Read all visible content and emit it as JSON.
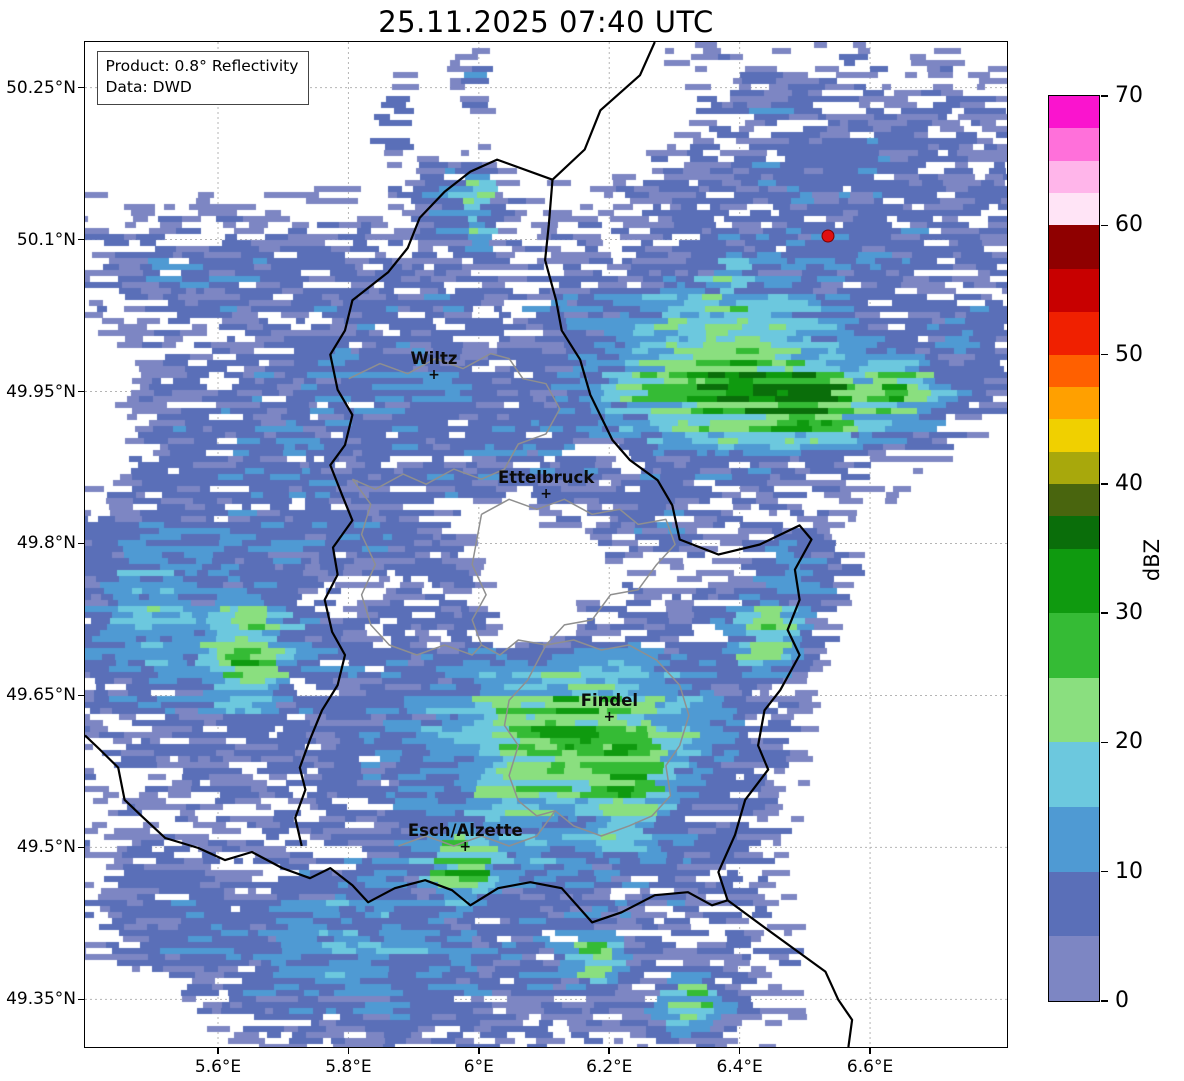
{
  "title": "25.11.2025 07:40 UTC",
  "info_box": {
    "line1": "Product: 0.8° Reflectivity",
    "line2": "Data: DWD"
  },
  "colorbar": {
    "label": "dBZ",
    "ticks": [
      0,
      10,
      20,
      30,
      40,
      50,
      60,
      70
    ],
    "max": 70,
    "stops": [
      {
        "v": [
          0,
          5
        ],
        "c": "#7d86c3"
      },
      {
        "v": [
          5,
          10
        ],
        "c": "#5a6fb8"
      },
      {
        "v": [
          10,
          15
        ],
        "c": "#4f9ad3"
      },
      {
        "v": [
          15,
          20
        ],
        "c": "#6cc8de"
      },
      {
        "v": [
          20,
          25
        ],
        "c": "#8adf7f"
      },
      {
        "v": [
          25,
          30
        ],
        "c": "#35bb35"
      },
      {
        "v": [
          30,
          35
        ],
        "c": "#0f9a0f"
      },
      {
        "v": [
          35,
          37.5
        ],
        "c": "#0a6e0a"
      },
      {
        "v": [
          37.5,
          40
        ],
        "c": "#49650e"
      },
      {
        "v": [
          40,
          42.5
        ],
        "c": "#a8a80c"
      },
      {
        "v": [
          42.5,
          45
        ],
        "c": "#f0d000"
      },
      {
        "v": [
          45,
          47.5
        ],
        "c": "#ffa000"
      },
      {
        "v": [
          47.5,
          50
        ],
        "c": "#ff6000"
      },
      {
        "v": [
          50,
          53.3
        ],
        "c": "#f02000"
      },
      {
        "v": [
          53.3,
          56.6
        ],
        "c": "#c80000"
      },
      {
        "v": [
          56.6,
          60
        ],
        "c": "#8f0000"
      },
      {
        "v": [
          60,
          62.5
        ],
        "c": "#ffe4f6"
      },
      {
        "v": [
          62.5,
          65
        ],
        "c": "#ffb5ea"
      },
      {
        "v": [
          65,
          67.5
        ],
        "c": "#ff70da"
      },
      {
        "v": [
          67.5,
          70
        ],
        "c": "#fa14ce"
      }
    ]
  },
  "axes": {
    "lon_min": 5.396,
    "lon_max": 6.81,
    "lat_min": 49.303,
    "lat_max": 50.295,
    "lon_ticks": [
      {
        "v": 5.6,
        "label": "5.6°E"
      },
      {
        "v": 5.8,
        "label": "5.8°E"
      },
      {
        "v": 6.0,
        "label": "6°E"
      },
      {
        "v": 6.2,
        "label": "6.2°E"
      },
      {
        "v": 6.4,
        "label": "6.4°E"
      },
      {
        "v": 6.6,
        "label": "6.6°E"
      }
    ],
    "lat_ticks": [
      {
        "v": 50.25,
        "label": "50.25°N"
      },
      {
        "v": 50.1,
        "label": "50.1°N"
      },
      {
        "v": 49.95,
        "label": "49.95°N"
      },
      {
        "v": 49.8,
        "label": "49.8°N"
      },
      {
        "v": 49.65,
        "label": "49.65°N"
      },
      {
        "v": 49.5,
        "label": "49.5°N"
      },
      {
        "v": 49.35,
        "label": "49.35°N"
      }
    ]
  },
  "cities": [
    {
      "name": "Wiltz",
      "lon": 5.932,
      "lat": 49.966
    },
    {
      "name": "Ettelbruck",
      "lon": 6.104,
      "lat": 49.848
    },
    {
      "name": "Findel",
      "lon": 6.201,
      "lat": 49.628
    },
    {
      "name": "Esch/Alzette",
      "lon": 5.98,
      "lat": 49.5
    }
  ],
  "station_marker": {
    "lon": 6.536,
    "lat": 50.103,
    "color": "#e01010"
  },
  "radar": {
    "blobs": [
      [
        0.16,
        0.235,
        0.17,
        0.05,
        8
      ],
      [
        0.31,
        0.275,
        0.13,
        0.045,
        7
      ],
      [
        0.33,
        0.068,
        0.032,
        0.05,
        8
      ],
      [
        0.42,
        0.04,
        0.018,
        0.035,
        8
      ],
      [
        0.4,
        0.165,
        0.05,
        0.05,
        10
      ],
      [
        0.425,
        0.167,
        0.02,
        0.04,
        24
      ],
      [
        0.33,
        0.33,
        0.21,
        0.13,
        9
      ],
      [
        0.46,
        0.43,
        0.18,
        0.11,
        8
      ],
      [
        0.55,
        0.3,
        0.1,
        0.09,
        10
      ],
      [
        0.62,
        0.46,
        0.07,
        0.05,
        9
      ],
      [
        0.78,
        0.2,
        0.24,
        0.15,
        8
      ],
      [
        0.95,
        0.3,
        0.08,
        0.06,
        10
      ],
      [
        0.7,
        0.325,
        0.15,
        0.085,
        30
      ],
      [
        0.775,
        0.355,
        0.09,
        0.05,
        35
      ],
      [
        0.87,
        0.345,
        0.07,
        0.045,
        24
      ],
      [
        0.7,
        0.235,
        0.022,
        0.027,
        22
      ],
      [
        0.08,
        0.56,
        0.11,
        0.12,
        14
      ],
      [
        0.174,
        0.605,
        0.062,
        0.068,
        24
      ],
      [
        0.22,
        0.5,
        0.3,
        0.28,
        8
      ],
      [
        0.77,
        0.53,
        0.05,
        0.05,
        12
      ],
      [
        0.5,
        0.73,
        0.24,
        0.15,
        14
      ],
      [
        0.53,
        0.695,
        0.16,
        0.1,
        26
      ],
      [
        0.585,
        0.73,
        0.06,
        0.08,
        32
      ],
      [
        0.47,
        0.745,
        0.07,
        0.05,
        25
      ],
      [
        0.41,
        0.82,
        0.05,
        0.045,
        26
      ],
      [
        0.74,
        0.59,
        0.05,
        0.042,
        24
      ],
      [
        0.45,
        0.88,
        0.36,
        0.12,
        8
      ],
      [
        0.12,
        0.88,
        0.1,
        0.08,
        9
      ],
      [
        0.3,
        0.9,
        0.18,
        0.09,
        13
      ],
      [
        0.555,
        0.91,
        0.035,
        0.035,
        24
      ],
      [
        0.655,
        0.955,
        0.04,
        0.032,
        23
      ],
      [
        0.74,
        0.06,
        0.06,
        0.045,
        7
      ],
      [
        0.845,
        0.11,
        0.05,
        0.04,
        8
      ]
    ],
    "holes": [
      [
        0.49,
        0.52,
        0.06,
        0.04,
        10
      ],
      [
        0.45,
        0.475,
        0.05,
        0.03,
        8
      ],
      [
        0.295,
        0.555,
        0.035,
        0.03,
        7
      ],
      [
        0.5,
        0.59,
        0.05,
        0.035,
        8
      ],
      [
        0.15,
        0.05,
        0.18,
        0.065,
        11
      ],
      [
        0.57,
        0.08,
        0.07,
        0.05,
        8
      ],
      [
        0.93,
        0.82,
        0.13,
        0.17,
        13
      ],
      [
        0.92,
        0.62,
        0.08,
        0.07,
        8
      ],
      [
        0.99,
        0.5,
        0.05,
        0.06,
        6
      ],
      [
        0.015,
        0.38,
        0.05,
        0.1,
        6
      ],
      [
        0.05,
        0.97,
        0.07,
        0.05,
        8
      ]
    ]
  },
  "map_layers": {
    "black": [
      [
        [
          0.618,
          0.0
        ],
        [
          0.602,
          0.033
        ],
        [
          0.559,
          0.068
        ],
        [
          0.542,
          0.107
        ],
        [
          0.507,
          0.137
        ],
        [
          0.503,
          0.182
        ],
        [
          0.499,
          0.217
        ],
        [
          0.511,
          0.257
        ],
        [
          0.517,
          0.287
        ],
        [
          0.537,
          0.316
        ],
        [
          0.548,
          0.351
        ],
        [
          0.572,
          0.396
        ],
        [
          0.591,
          0.416
        ],
        [
          0.621,
          0.436
        ],
        [
          0.637,
          0.461
        ],
        [
          0.645,
          0.495
        ],
        [
          0.687,
          0.51
        ],
        [
          0.732,
          0.5
        ],
        [
          0.775,
          0.481
        ],
        [
          0.788,
          0.495
        ],
        [
          0.77,
          0.525
        ],
        [
          0.775,
          0.555
        ],
        [
          0.762,
          0.585
        ],
        [
          0.775,
          0.61
        ],
        [
          0.754,
          0.645
        ],
        [
          0.737,
          0.665
        ],
        [
          0.73,
          0.7
        ],
        [
          0.741,
          0.724
        ],
        [
          0.716,
          0.754
        ],
        [
          0.705,
          0.789
        ],
        [
          0.687,
          0.826
        ],
        [
          0.697,
          0.854
        ],
        [
          0.734,
          0.879
        ],
        [
          0.77,
          0.903
        ],
        [
          0.803,
          0.925
        ],
        [
          0.817,
          0.953
        ],
        [
          0.832,
          0.973
        ],
        [
          0.828,
          1.0
        ]
      ],
      [
        [
          0.507,
          0.137
        ],
        [
          0.447,
          0.117
        ],
        [
          0.418,
          0.129
        ],
        [
          0.39,
          0.149
        ],
        [
          0.363,
          0.175
        ],
        [
          0.35,
          0.205
        ],
        [
          0.329,
          0.229
        ],
        [
          0.29,
          0.257
        ],
        [
          0.282,
          0.287
        ],
        [
          0.266,
          0.311
        ],
        [
          0.274,
          0.346
        ],
        [
          0.29,
          0.371
        ],
        [
          0.282,
          0.401
        ],
        [
          0.266,
          0.421
        ],
        [
          0.279,
          0.451
        ],
        [
          0.29,
          0.476
        ],
        [
          0.269,
          0.503
        ],
        [
          0.274,
          0.53
        ],
        [
          0.26,
          0.555
        ],
        [
          0.268,
          0.587
        ],
        [
          0.282,
          0.61
        ],
        [
          0.274,
          0.64
        ],
        [
          0.257,
          0.665
        ],
        [
          0.244,
          0.694
        ],
        [
          0.233,
          0.722
        ],
        [
          0.239,
          0.744
        ],
        [
          0.228,
          0.772
        ],
        [
          0.235,
          0.8
        ]
      ],
      [
        [
          0.0,
          0.69
        ],
        [
          0.016,
          0.704
        ],
        [
          0.036,
          0.722
        ],
        [
          0.043,
          0.754
        ],
        [
          0.06,
          0.769
        ],
        [
          0.087,
          0.792
        ],
        [
          0.123,
          0.802
        ],
        [
          0.152,
          0.814
        ],
        [
          0.181,
          0.806
        ],
        [
          0.214,
          0.822
        ],
        [
          0.244,
          0.832
        ],
        [
          0.266,
          0.822
        ],
        [
          0.29,
          0.839
        ],
        [
          0.307,
          0.856
        ],
        [
          0.336,
          0.842
        ],
        [
          0.369,
          0.834
        ],
        [
          0.398,
          0.844
        ],
        [
          0.418,
          0.859
        ],
        [
          0.448,
          0.842
        ],
        [
          0.483,
          0.836
        ],
        [
          0.517,
          0.842
        ],
        [
          0.55,
          0.876
        ],
        [
          0.582,
          0.866
        ],
        [
          0.618,
          0.849
        ],
        [
          0.654,
          0.846
        ],
        [
          0.68,
          0.859
        ],
        [
          0.697,
          0.854
        ]
      ]
    ],
    "gray": [
      [
        [
          0.286,
          0.335
        ],
        [
          0.32,
          0.32
        ],
        [
          0.35,
          0.33
        ],
        [
          0.38,
          0.315
        ],
        [
          0.41,
          0.325
        ],
        [
          0.44,
          0.31
        ],
        [
          0.46,
          0.315
        ],
        [
          0.475,
          0.335
        ],
        [
          0.5,
          0.34
        ],
        [
          0.515,
          0.365
        ],
        [
          0.5,
          0.39
        ],
        [
          0.47,
          0.4
        ],
        [
          0.455,
          0.425
        ],
        [
          0.43,
          0.435
        ],
        [
          0.4,
          0.425
        ],
        [
          0.37,
          0.44
        ],
        [
          0.345,
          0.43
        ],
        [
          0.315,
          0.445
        ],
        [
          0.29,
          0.435
        ]
      ],
      [
        [
          0.43,
          0.47
        ],
        [
          0.46,
          0.455
        ],
        [
          0.49,
          0.465
        ],
        [
          0.52,
          0.455
        ],
        [
          0.55,
          0.47
        ],
        [
          0.58,
          0.465
        ],
        [
          0.6,
          0.48
        ],
        [
          0.63,
          0.475
        ],
        [
          0.64,
          0.5
        ],
        [
          0.62,
          0.52
        ],
        [
          0.6,
          0.545
        ],
        [
          0.57,
          0.55
        ],
        [
          0.55,
          0.575
        ],
        [
          0.52,
          0.58
        ],
        [
          0.5,
          0.6
        ],
        [
          0.47,
          0.595
        ],
        [
          0.45,
          0.61
        ],
        [
          0.43,
          0.6
        ],
        [
          0.42,
          0.575
        ],
        [
          0.435,
          0.55
        ],
        [
          0.42,
          0.52
        ],
        [
          0.43,
          0.47
        ]
      ],
      [
        [
          0.5,
          0.6
        ],
        [
          0.53,
          0.595
        ],
        [
          0.56,
          0.605
        ],
        [
          0.59,
          0.6
        ],
        [
          0.62,
          0.615
        ],
        [
          0.645,
          0.64
        ],
        [
          0.655,
          0.67
        ],
        [
          0.645,
          0.7
        ],
        [
          0.63,
          0.72
        ],
        [
          0.635,
          0.75
        ],
        [
          0.615,
          0.77
        ],
        [
          0.59,
          0.78
        ],
        [
          0.56,
          0.79
        ],
        [
          0.53,
          0.78
        ],
        [
          0.51,
          0.765
        ],
        [
          0.49,
          0.77
        ],
        [
          0.47,
          0.755
        ],
        [
          0.46,
          0.73
        ],
        [
          0.47,
          0.7
        ],
        [
          0.455,
          0.68
        ],
        [
          0.46,
          0.655
        ],
        [
          0.48,
          0.635
        ],
        [
          0.5,
          0.6
        ]
      ],
      [
        [
          0.29,
          0.435
        ],
        [
          0.31,
          0.46
        ],
        [
          0.3,
          0.49
        ],
        [
          0.315,
          0.52
        ],
        [
          0.3,
          0.55
        ],
        [
          0.31,
          0.58
        ],
        [
          0.33,
          0.6
        ],
        [
          0.36,
          0.61
        ],
        [
          0.39,
          0.6
        ],
        [
          0.42,
          0.61
        ],
        [
          0.43,
          0.6
        ]
      ],
      [
        [
          0.34,
          0.8
        ],
        [
          0.37,
          0.79
        ],
        [
          0.4,
          0.8
        ],
        [
          0.43,
          0.79
        ],
        [
          0.46,
          0.8
        ],
        [
          0.49,
          0.79
        ],
        [
          0.51,
          0.765
        ]
      ]
    ]
  }
}
